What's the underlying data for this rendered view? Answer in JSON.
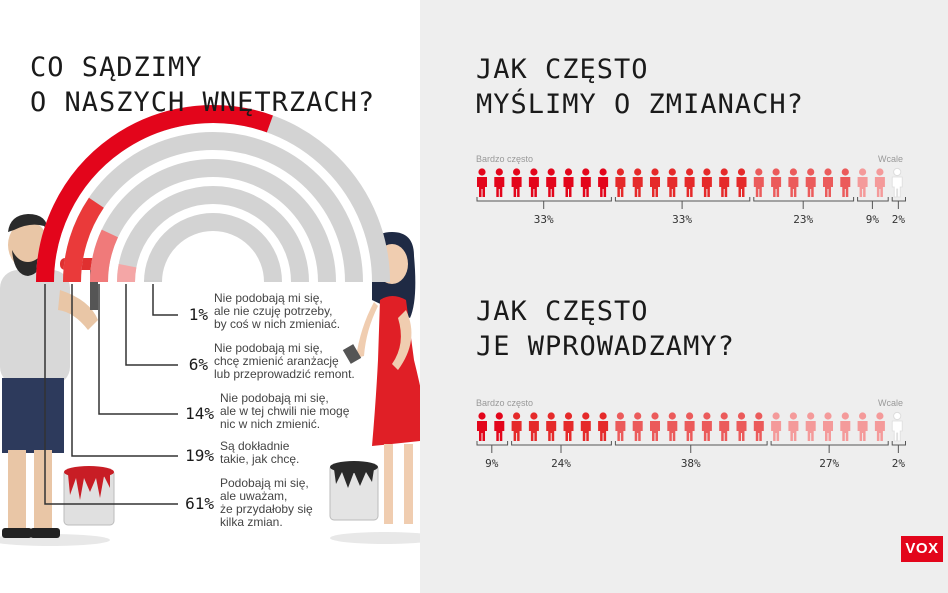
{
  "colors": {
    "accent": "#e3051b",
    "rainbow": [
      "#cfcfcf",
      "#f4a6a6",
      "#f07a7a",
      "#ea3a3a",
      "#e3051b"
    ],
    "icon_shades": [
      "#e3051b",
      "#e52a2a",
      "#eb5b5b",
      "#f49a9a",
      "#ffffff"
    ]
  },
  "left": {
    "title_lines": [
      "CO SĄDZIMY",
      "O NASZYCH WNĘTRZACH?"
    ],
    "items": [
      {
        "pct": "1%",
        "lines": [
          "Nie podobają mi się,",
          "ale nie czuję potrzeby,",
          "by coś w nich zmieniać."
        ]
      },
      {
        "pct": "6%",
        "lines": [
          "Nie podobają mi się,",
          "chcę zmienić aranżację",
          "lub przeprowadzić remont."
        ]
      },
      {
        "pct": "14%",
        "lines": [
          "Nie podobają mi się,",
          "ale w tej chwili nie mogę",
          "nic w nich zmienić."
        ]
      },
      {
        "pct": "19%",
        "lines": [
          "Są dokładnie",
          "takie, jak chcę."
        ]
      },
      {
        "pct": "61%",
        "lines": [
          "Podobają mi się,",
          "ale uważam,",
          "że przydałoby się",
          "kilka zmian."
        ]
      }
    ],
    "chart_data": {
      "type": "pie",
      "categories": [
        "Nie podobają mi się, ale nie czuję potrzeby, by coś w nich zmieniać.",
        "Nie podobają mi się, chcę zmienić aranżację lub przeprowadzić remont.",
        "Nie podobają mi się, ale w tej chwili nie mogę nic w nich zmienić.",
        "Są dokładnie takie, jak chcę.",
        "Podobają mi się, ale uważam, że przydałoby się kilka zmian."
      ],
      "values": [
        1,
        6,
        14,
        19,
        61
      ]
    }
  },
  "right": {
    "chart1": {
      "title_lines": [
        "JAK CZĘSTO",
        "MYŚLIMY O ZMIANACH?"
      ],
      "start_label": "Bardzo często",
      "end_label": "Wcale",
      "chart_data": {
        "type": "bar",
        "categories": [
          "Bardzo często",
          "",
          "",
          "",
          "Wcale"
        ],
        "values": [
          33,
          33,
          23,
          9,
          2
        ],
        "labels": [
          "33%",
          "33%",
          "23%",
          "9%",
          "2%"
        ],
        "counts": [
          8,
          8,
          6,
          2,
          1
        ]
      }
    },
    "chart2": {
      "title_lines": [
        "JAK CZĘSTO",
        "JE WPROWADZAMY?"
      ],
      "start_label": "Bardzo często",
      "end_label": "Wcale",
      "chart_data": {
        "type": "bar",
        "categories": [
          "Bardzo często",
          "",
          "",
          "",
          "Wcale"
        ],
        "values": [
          9,
          24,
          38,
          27,
          2
        ],
        "labels": [
          "9%",
          "24%",
          "38%",
          "27%",
          "2%"
        ],
        "counts": [
          2,
          6,
          9,
          7,
          1
        ]
      }
    }
  },
  "logo": "VOX"
}
